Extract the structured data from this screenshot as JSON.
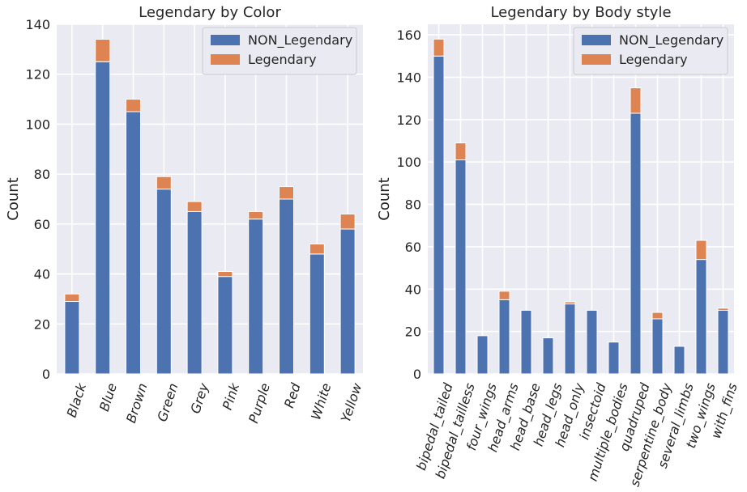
{
  "colors": {
    "non_legendary": "#4c72b0",
    "legendary": "#dd8452",
    "plot_bg": "#eaeaf2",
    "grid": "#ffffff"
  },
  "chart_data": [
    {
      "type": "bar",
      "stacked": true,
      "title": "Legendary by Color",
      "xlabel": "",
      "ylabel": "Count",
      "ylim": [
        0,
        140
      ],
      "yticks": [
        0,
        20,
        40,
        60,
        80,
        100,
        120,
        140
      ],
      "legend_position": "top-right",
      "grid": true,
      "categories": [
        "Black",
        "Blue",
        "Brown",
        "Green",
        "Grey",
        "Pink",
        "Purple",
        "Red",
        "White",
        "Yellow"
      ],
      "series": [
        {
          "name": "NON_Legendary",
          "values": [
            29,
            125,
            105,
            74,
            65,
            39,
            62,
            70,
            48,
            58
          ]
        },
        {
          "name": "Legendary",
          "values": [
            3,
            9,
            5,
            5,
            4,
            2,
            3,
            5,
            4,
            6
          ]
        }
      ]
    },
    {
      "type": "bar",
      "stacked": true,
      "title": "Legendary by Body style",
      "xlabel": "",
      "ylabel": "Count",
      "ylim": [
        0,
        165
      ],
      "yticks": [
        0,
        20,
        40,
        60,
        80,
        100,
        120,
        140,
        160
      ],
      "legend_position": "top-right",
      "grid": true,
      "categories": [
        "bipedal_tailed",
        "bipedal_tailless",
        "four_wings",
        "head_arms",
        "head_base",
        "head_legs",
        "head_only",
        "insectoid",
        "multiple_bodies",
        "quadruped",
        "serpentine_body",
        "several_limbs",
        "two_wings",
        "with_fins"
      ],
      "series": [
        {
          "name": "NON_Legendary",
          "values": [
            150,
            101,
            18,
            35,
            30,
            17,
            33,
            30,
            15,
            123,
            26,
            13,
            54,
            30
          ]
        },
        {
          "name": "Legendary",
          "values": [
            8,
            8,
            0,
            4,
            0,
            0,
            1,
            0,
            0,
            12,
            3,
            0,
            9,
            1
          ]
        }
      ]
    }
  ]
}
